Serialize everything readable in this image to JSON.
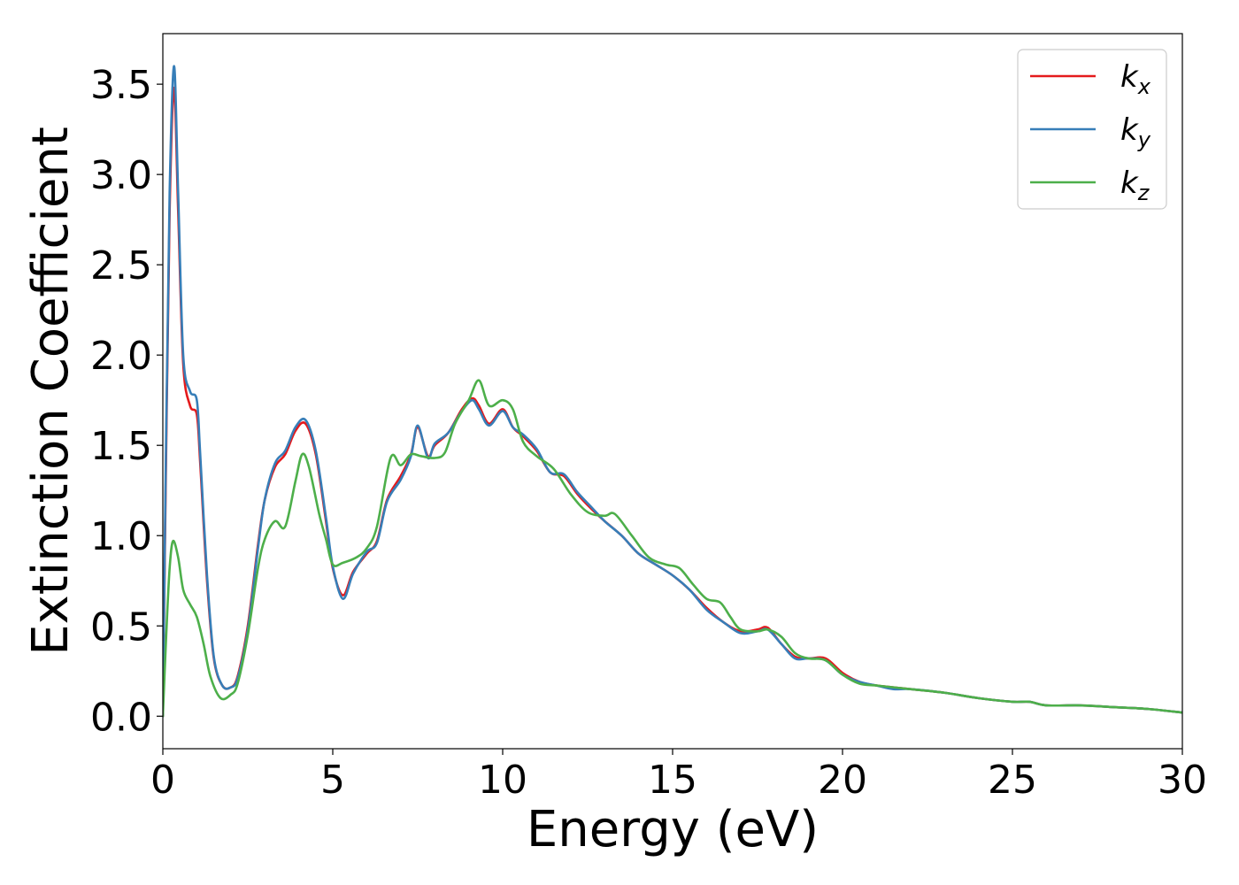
{
  "chart_data": {
    "type": "line",
    "title": "",
    "xlabel": "Energy (eV)",
    "ylabel": "Extinction Coefficient",
    "xlim": [
      0,
      30
    ],
    "ylim": [
      -0.18,
      3.78
    ],
    "xticks": [
      0,
      5,
      10,
      15,
      20,
      25,
      30
    ],
    "xtick_labels": [
      "0",
      "5",
      "10",
      "15",
      "20",
      "25",
      "30"
    ],
    "yticks": [
      0.0,
      0.5,
      1.0,
      1.5,
      2.0,
      2.5,
      3.0,
      3.5
    ],
    "ytick_labels": [
      "0.0",
      "0.5",
      "1.0",
      "1.5",
      "2.0",
      "2.5",
      "3.0",
      "3.5"
    ],
    "grid": false,
    "legend_position": "top-right",
    "series": [
      {
        "name": "k",
        "subscript": "x",
        "color": "#e41a1c",
        "x": [
          0,
          0.1,
          0.2,
          0.33,
          0.45,
          0.6,
          0.8,
          1.0,
          1.1,
          1.3,
          1.5,
          1.75,
          2.0,
          2.2,
          2.5,
          2.8,
          3.0,
          3.3,
          3.6,
          3.9,
          4.2,
          4.5,
          4.8,
          5.0,
          5.3,
          5.6,
          6.0,
          6.3,
          6.6,
          7.0,
          7.3,
          7.5,
          7.8,
          8.0,
          8.4,
          8.8,
          9.1,
          9.3,
          9.6,
          10.0,
          10.3,
          10.6,
          11.0,
          11.4,
          11.8,
          12.2,
          12.6,
          13.0,
          13.5,
          14.0,
          14.5,
          15.0,
          15.5,
          16.0,
          16.5,
          17.0,
          17.5,
          17.8,
          18.2,
          18.6,
          19.0,
          19.5,
          20.0,
          20.5,
          21.0,
          21.5,
          22.0,
          23.0,
          24.0,
          25.0,
          25.5,
          26.0,
          27.0,
          28.0,
          29.0,
          30.0
        ],
        "values": [
          0.0,
          1.5,
          2.8,
          3.48,
          2.8,
          1.95,
          1.72,
          1.67,
          1.4,
          0.75,
          0.32,
          0.17,
          0.16,
          0.22,
          0.5,
          0.95,
          1.2,
          1.38,
          1.45,
          1.58,
          1.62,
          1.45,
          1.08,
          0.82,
          0.67,
          0.8,
          0.9,
          0.97,
          1.2,
          1.33,
          1.45,
          1.6,
          1.44,
          1.5,
          1.57,
          1.7,
          1.76,
          1.72,
          1.62,
          1.7,
          1.6,
          1.55,
          1.47,
          1.35,
          1.33,
          1.23,
          1.15,
          1.08,
          1.0,
          0.9,
          0.84,
          0.78,
          0.7,
          0.6,
          0.52,
          0.47,
          0.48,
          0.49,
          0.4,
          0.33,
          0.32,
          0.32,
          0.24,
          0.19,
          0.17,
          0.16,
          0.15,
          0.13,
          0.1,
          0.08,
          0.08,
          0.06,
          0.06,
          0.05,
          0.04,
          0.02
        ]
      },
      {
        "name": "k",
        "subscript": "y",
        "color": "#377eb8",
        "x": [
          0,
          0.1,
          0.2,
          0.33,
          0.45,
          0.6,
          0.8,
          1.0,
          1.1,
          1.3,
          1.5,
          1.75,
          2.0,
          2.2,
          2.5,
          2.8,
          3.0,
          3.3,
          3.6,
          3.9,
          4.2,
          4.5,
          4.8,
          5.0,
          5.3,
          5.6,
          6.0,
          6.3,
          6.6,
          7.0,
          7.3,
          7.5,
          7.8,
          8.0,
          8.4,
          8.8,
          9.1,
          9.3,
          9.6,
          10.0,
          10.3,
          10.6,
          11.0,
          11.4,
          11.8,
          12.2,
          12.6,
          13.0,
          13.5,
          14.0,
          14.5,
          15.0,
          15.5,
          16.0,
          16.5,
          17.0,
          17.5,
          17.8,
          18.2,
          18.6,
          19.0,
          19.5,
          20.0,
          20.5,
          21.0,
          21.5,
          22.0,
          23.0,
          24.0,
          25.0,
          25.5,
          26.0,
          27.0,
          28.0,
          29.0,
          30.0
        ],
        "values": [
          0.0,
          1.6,
          2.9,
          3.6,
          2.9,
          2.0,
          1.8,
          1.75,
          1.45,
          0.78,
          0.33,
          0.17,
          0.16,
          0.21,
          0.48,
          0.93,
          1.2,
          1.4,
          1.47,
          1.6,
          1.64,
          1.47,
          1.1,
          0.83,
          0.65,
          0.79,
          0.91,
          0.96,
          1.19,
          1.31,
          1.44,
          1.61,
          1.43,
          1.51,
          1.57,
          1.69,
          1.75,
          1.7,
          1.61,
          1.69,
          1.6,
          1.56,
          1.48,
          1.35,
          1.34,
          1.24,
          1.16,
          1.08,
          1.0,
          0.9,
          0.84,
          0.78,
          0.7,
          0.59,
          0.52,
          0.46,
          0.47,
          0.48,
          0.4,
          0.32,
          0.32,
          0.31,
          0.23,
          0.19,
          0.17,
          0.15,
          0.15,
          0.13,
          0.1,
          0.08,
          0.08,
          0.06,
          0.06,
          0.05,
          0.04,
          0.02
        ]
      },
      {
        "name": "k",
        "subscript": "z",
        "color": "#4daf4a",
        "x": [
          0,
          0.1,
          0.2,
          0.3,
          0.45,
          0.6,
          0.8,
          1.0,
          1.2,
          1.4,
          1.7,
          2.0,
          2.2,
          2.5,
          2.8,
          3.0,
          3.3,
          3.6,
          3.9,
          4.1,
          4.3,
          4.6,
          4.8,
          5.0,
          5.3,
          5.7,
          6.0,
          6.3,
          6.7,
          7.0,
          7.3,
          7.6,
          8.0,
          8.3,
          8.6,
          9.0,
          9.3,
          9.6,
          10.0,
          10.3,
          10.6,
          11.0,
          11.5,
          12.0,
          12.5,
          13.0,
          13.3,
          13.8,
          14.3,
          14.8,
          15.2,
          15.6,
          16.0,
          16.4,
          16.7,
          17.0,
          17.5,
          17.8,
          18.2,
          18.6,
          19.0,
          19.5,
          20.0,
          20.5,
          21.0,
          21.5,
          22.0,
          23.0,
          24.0,
          25.0,
          25.5,
          26.0,
          27.0,
          28.0,
          29.0,
          30.0
        ],
        "values": [
          0.0,
          0.45,
          0.82,
          0.97,
          0.88,
          0.7,
          0.62,
          0.55,
          0.4,
          0.22,
          0.1,
          0.12,
          0.18,
          0.45,
          0.82,
          0.98,
          1.08,
          1.05,
          1.3,
          1.45,
          1.38,
          1.12,
          0.98,
          0.84,
          0.85,
          0.88,
          0.93,
          1.05,
          1.43,
          1.39,
          1.45,
          1.44,
          1.43,
          1.46,
          1.62,
          1.75,
          1.86,
          1.72,
          1.75,
          1.7,
          1.52,
          1.44,
          1.37,
          1.23,
          1.13,
          1.11,
          1.12,
          1.0,
          0.88,
          0.84,
          0.82,
          0.73,
          0.65,
          0.63,
          0.55,
          0.48,
          0.47,
          0.48,
          0.44,
          0.35,
          0.32,
          0.31,
          0.23,
          0.18,
          0.17,
          0.16,
          0.15,
          0.13,
          0.1,
          0.08,
          0.08,
          0.06,
          0.06,
          0.05,
          0.04,
          0.02
        ]
      }
    ]
  }
}
